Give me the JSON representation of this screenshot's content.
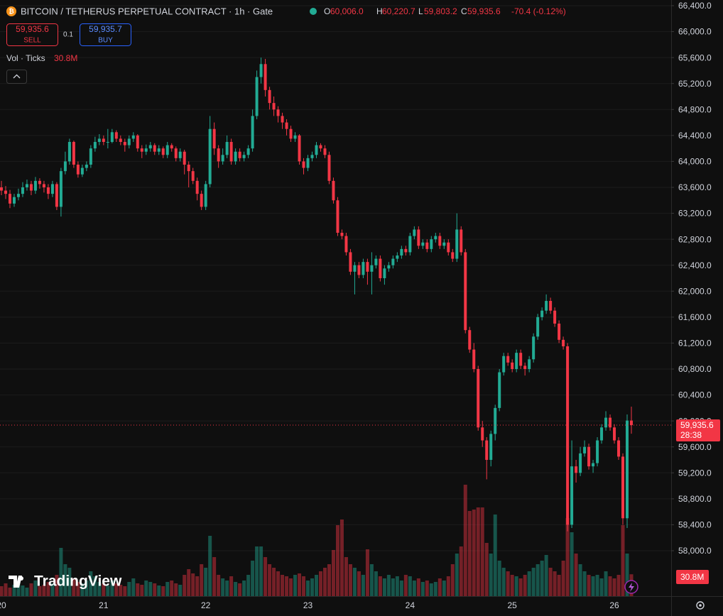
{
  "chart_data": {
    "type": "candlestick",
    "title": "BITCOIN / TETHERUS PERPETUAL CONTRACT · 1h · Gate",
    "legend": {
      "o_label": "O",
      "open": "60,006.0",
      "h_label": "H",
      "high": "60,220.7",
      "l_label": "L",
      "low": "59,803.2",
      "c_label": "C",
      "close": "59,935.6",
      "change": "-70.4 (-0.12%)"
    },
    "trade": {
      "sell_price": "59,935.6",
      "sell": "SELL",
      "size": "0.1",
      "buy_price": "59,935.7",
      "buy": "BUY"
    },
    "price_tag": {
      "price": "59,935.6",
      "countdown": "28:38"
    },
    "watermark": "TradingView",
    "up_color": "#22ab94",
    "down_color": "#f23645",
    "categories": [
      "20",
      null,
      null,
      null,
      null,
      null,
      null,
      null,
      null,
      null,
      null,
      null,
      null,
      null,
      null,
      null,
      null,
      null,
      null,
      null,
      null,
      null,
      null,
      null,
      "21",
      null,
      null,
      null,
      null,
      null,
      null,
      null,
      null,
      null,
      null,
      null,
      null,
      null,
      null,
      null,
      null,
      null,
      null,
      null,
      null,
      null,
      null,
      null,
      "22",
      null,
      null,
      null,
      null,
      null,
      null,
      null,
      null,
      null,
      null,
      null,
      null,
      null,
      null,
      null,
      null,
      null,
      null,
      null,
      null,
      null,
      null,
      null,
      "23",
      null,
      null,
      null,
      null,
      null,
      null,
      null,
      null,
      null,
      null,
      null,
      null,
      null,
      null,
      null,
      null,
      null,
      null,
      null,
      null,
      null,
      null,
      null,
      "24",
      null,
      null,
      null,
      null,
      null,
      null,
      null,
      null,
      null,
      null,
      null,
      null,
      null,
      null,
      null,
      null,
      null,
      null,
      null,
      null,
      null,
      null,
      null,
      "25",
      null,
      null,
      null,
      null,
      null,
      null,
      null,
      null,
      null,
      null,
      null,
      null,
      null,
      null,
      null,
      null,
      null,
      null,
      null,
      null,
      null,
      null,
      null,
      "26",
      null,
      null,
      null,
      null
    ],
    "ohlc": [
      [
        63600,
        63700,
        63480,
        63550
      ],
      [
        63550,
        63620,
        63420,
        63500
      ],
      [
        63500,
        63560,
        63280,
        63350
      ],
      [
        63350,
        63500,
        63300,
        63450
      ],
      [
        63450,
        63580,
        63400,
        63500
      ],
      [
        63500,
        63680,
        63450,
        63600
      ],
      [
        63600,
        63720,
        63550,
        63650
      ],
      [
        63650,
        63700,
        63480,
        63550
      ],
      [
        63550,
        63760,
        63500,
        63700
      ],
      [
        63700,
        63740,
        63580,
        63650
      ],
      [
        63650,
        63700,
        63520,
        63600
      ],
      [
        63600,
        63650,
        63420,
        63500
      ],
      [
        63500,
        63700,
        63450,
        63650
      ],
      [
        63650,
        63680,
        63250,
        63300
      ],
      [
        63300,
        63900,
        63150,
        63850
      ],
      [
        63850,
        64150,
        63800,
        64000
      ],
      [
        64000,
        64350,
        63950,
        64300
      ],
      [
        64300,
        64320,
        63900,
        63950
      ],
      [
        63950,
        64000,
        63750,
        63800
      ],
      [
        63800,
        63950,
        63760,
        63900
      ],
      [
        63900,
        64000,
        63850,
        63950
      ],
      [
        63950,
        64250,
        63900,
        64200
      ],
      [
        64200,
        64380,
        64150,
        64300
      ],
      [
        64300,
        64420,
        64250,
        64350
      ],
      [
        64350,
        64400,
        64250,
        64300
      ],
      [
        64300,
        64500,
        64200,
        64300
      ],
      [
        64300,
        64500,
        64280,
        64450
      ],
      [
        64450,
        64480,
        64300,
        64350
      ],
      [
        64350,
        64400,
        64250,
        64300
      ],
      [
        64300,
        64350,
        64150,
        64250
      ],
      [
        64250,
        64400,
        64200,
        64350
      ],
      [
        64350,
        64450,
        64300,
        64400
      ],
      [
        64400,
        64420,
        64150,
        64200
      ],
      [
        64200,
        64250,
        64050,
        64150
      ],
      [
        64150,
        64260,
        64100,
        64200
      ],
      [
        64200,
        64300,
        64150,
        64250
      ],
      [
        64250,
        64280,
        64100,
        64150
      ],
      [
        64150,
        64250,
        64100,
        64200
      ],
      [
        64200,
        64230,
        64050,
        64100
      ],
      [
        64100,
        64300,
        64050,
        64250
      ],
      [
        64250,
        64280,
        64150,
        64200
      ],
      [
        64200,
        64230,
        64000,
        64050
      ],
      [
        64050,
        64200,
        64000,
        64150
      ],
      [
        64150,
        64180,
        63800,
        63950
      ],
      [
        63950,
        64000,
        63600,
        63850
      ],
      [
        63850,
        63900,
        63650,
        63700
      ],
      [
        63700,
        63750,
        63400,
        63500
      ],
      [
        63500,
        63550,
        63250,
        63300
      ],
      [
        63300,
        63700,
        63250,
        63650
      ],
      [
        63650,
        64700,
        63600,
        64500
      ],
      [
        64500,
        64600,
        64100,
        64200
      ],
      [
        64200,
        64250,
        63900,
        64000
      ],
      [
        64000,
        64200,
        63950,
        64100
      ],
      [
        64100,
        64400,
        64050,
        64300
      ],
      [
        64300,
        64350,
        63950,
        64000
      ],
      [
        64000,
        64200,
        63950,
        64150
      ],
      [
        64150,
        64200,
        64000,
        64050
      ],
      [
        64050,
        64150,
        64000,
        64100
      ],
      [
        64100,
        64250,
        64050,
        64200
      ],
      [
        64200,
        64800,
        64150,
        64700
      ],
      [
        64700,
        65400,
        64650,
        65300
      ],
      [
        65300,
        65600,
        65200,
        65500
      ],
      [
        65500,
        65580,
        65000,
        65100
      ],
      [
        65100,
        65150,
        64800,
        64900
      ],
      [
        64900,
        65000,
        64700,
        64800
      ],
      [
        64800,
        64850,
        64600,
        64700
      ],
      [
        64700,
        64750,
        64500,
        64600
      ],
      [
        64600,
        64650,
        64400,
        64500
      ],
      [
        64500,
        64550,
        64300,
        64350
      ],
      [
        64350,
        64450,
        64300,
        64400
      ],
      [
        64400,
        64420,
        63950,
        64000
      ],
      [
        64000,
        64050,
        63800,
        63900
      ],
      [
        63900,
        64100,
        63850,
        64050
      ],
      [
        64050,
        64150,
        64000,
        64100
      ],
      [
        64100,
        64300,
        64050,
        64250
      ],
      [
        64250,
        64280,
        64150,
        64200
      ],
      [
        64200,
        64250,
        64050,
        64100
      ],
      [
        64100,
        64150,
        63650,
        63700
      ],
      [
        63700,
        63750,
        63350,
        63400
      ],
      [
        63400,
        63450,
        62850,
        62900
      ],
      [
        62900,
        62950,
        62800,
        62850
      ],
      [
        62850,
        62900,
        62550,
        62600
      ],
      [
        62600,
        62650,
        62250,
        62300
      ],
      [
        62300,
        62450,
        61950,
        62400
      ],
      [
        62400,
        62450,
        62200,
        62250
      ],
      [
        62250,
        62500,
        62200,
        62450
      ],
      [
        62450,
        62500,
        62100,
        62300
      ],
      [
        62300,
        62600,
        61950,
        62400
      ],
      [
        62400,
        62550,
        62350,
        62500
      ],
      [
        62500,
        62550,
        62150,
        62200
      ],
      [
        62200,
        62400,
        62100,
        62350
      ],
      [
        62350,
        62450,
        62300,
        62400
      ],
      [
        62400,
        62550,
        62350,
        62500
      ],
      [
        62500,
        62600,
        62450,
        62550
      ],
      [
        62550,
        62700,
        62500,
        62650
      ],
      [
        62650,
        62700,
        62550,
        62600
      ],
      [
        62600,
        62900,
        62550,
        62850
      ],
      [
        62850,
        63000,
        62800,
        62950
      ],
      [
        62950,
        63000,
        62650,
        62700
      ],
      [
        62700,
        62800,
        62650,
        62750
      ],
      [
        62750,
        62800,
        62600,
        62650
      ],
      [
        62650,
        62850,
        62600,
        62800
      ],
      [
        62800,
        62900,
        62750,
        62850
      ],
      [
        62850,
        62900,
        62650,
        62700
      ],
      [
        62700,
        62800,
        62650,
        62750
      ],
      [
        62750,
        62800,
        62550,
        62600
      ],
      [
        62600,
        62650,
        62450,
        62500
      ],
      [
        62500,
        63200,
        62450,
        62950
      ],
      [
        62950,
        63000,
        62550,
        62600
      ],
      [
        62600,
        62650,
        61350,
        61400
      ],
      [
        61400,
        61450,
        61050,
        61100
      ],
      [
        61100,
        61200,
        60750,
        60800
      ],
      [
        60800,
        60850,
        59850,
        59900
      ],
      [
        59900,
        60000,
        59600,
        59700
      ],
      [
        59700,
        59750,
        59100,
        59400
      ],
      [
        59400,
        59850,
        59300,
        59800
      ],
      [
        59800,
        60250,
        59700,
        60200
      ],
      [
        60200,
        60800,
        60150,
        60750
      ],
      [
        60750,
        61050,
        60700,
        61000
      ],
      [
        61000,
        61050,
        60850,
        60900
      ],
      [
        60900,
        60950,
        60750,
        60800
      ],
      [
        60800,
        61100,
        60750,
        61050
      ],
      [
        61050,
        61100,
        60800,
        60850
      ],
      [
        60850,
        60900,
        60700,
        60800
      ],
      [
        60800,
        61000,
        60750,
        60950
      ],
      [
        60950,
        61350,
        60900,
        61300
      ],
      [
        61300,
        61650,
        61250,
        61600
      ],
      [
        61600,
        61750,
        61550,
        61700
      ],
      [
        61700,
        61950,
        61650,
        61850
      ],
      [
        61850,
        61900,
        61650,
        61700
      ],
      [
        61700,
        61750,
        61450,
        61500
      ],
      [
        61500,
        61550,
        61200,
        61250
      ],
      [
        61250,
        61300,
        61100,
        61150
      ],
      [
        61150,
        61200,
        58300,
        58400
      ],
      [
        58400,
        59700,
        58350,
        59300
      ],
      [
        59300,
        59400,
        59050,
        59200
      ],
      [
        59200,
        59600,
        59150,
        59500
      ],
      [
        59500,
        59700,
        59450,
        59600
      ],
      [
        59600,
        59650,
        59250,
        59300
      ],
      [
        59300,
        59400,
        59200,
        59350
      ],
      [
        59350,
        59750,
        59300,
        59700
      ],
      [
        59700,
        59950,
        59650,
        59900
      ],
      [
        59900,
        60150,
        59850,
        60050
      ],
      [
        60050,
        60100,
        59850,
        59900
      ],
      [
        59900,
        59950,
        59650,
        59700
      ],
      [
        59700,
        59750,
        59400,
        59450
      ],
      [
        59450,
        59500,
        58400,
        58500
      ],
      [
        58500,
        60100,
        58350,
        60006
      ],
      [
        60006,
        60220.7,
        59803.2,
        59935.6
      ]
    ],
    "volume": {
      "name": "Vol · Ticks",
      "value_label": "30.8M",
      "values": [
        14,
        18,
        12,
        16,
        20,
        15,
        12,
        18,
        22,
        14,
        16,
        20,
        18,
        30,
        68,
        45,
        40,
        25,
        20,
        18,
        22,
        35,
        28,
        20,
        18,
        15,
        22,
        18,
        16,
        14,
        20,
        25,
        18,
        16,
        22,
        20,
        18,
        15,
        14,
        20,
        22,
        18,
        16,
        30,
        38,
        32,
        28,
        45,
        40,
        85,
        55,
        30,
        25,
        22,
        28,
        20,
        18,
        22,
        30,
        50,
        70,
        70,
        55,
        45,
        40,
        35,
        30,
        28,
        25,
        30,
        32,
        28,
        22,
        25,
        30,
        35,
        40,
        45,
        65,
        100,
        108,
        55,
        45,
        40,
        35,
        30,
        66,
        45,
        35,
        28,
        25,
        30,
        25,
        28,
        22,
        30,
        28,
        22,
        25,
        20,
        22,
        18,
        20,
        25,
        22,
        28,
        45,
        60,
        70,
        157,
        120,
        122,
        125,
        125,
        75,
        60,
        115,
        50,
        40,
        35,
        30,
        28,
        25,
        30,
        35,
        40,
        45,
        50,
        58,
        40,
        35,
        30,
        50,
        110,
        90,
        60,
        45,
        35,
        30,
        28,
        30,
        25,
        35,
        28,
        25,
        30,
        100,
        60,
        30.8
      ]
    },
    "ylim": [
      57300,
      66487.5
    ],
    "yticks": [
      {
        "value": 58000,
        "label": "58,000.0"
      },
      {
        "value": 58400,
        "label": "58,400.0"
      },
      {
        "value": 58800,
        "label": "58,800.0"
      },
      {
        "value": 59200,
        "label": "59,200.0"
      },
      {
        "value": 59600,
        "label": "59,600.0"
      },
      {
        "value": 60000,
        "label": "60,000.0"
      },
      {
        "value": 60400,
        "label": "60,400.0"
      },
      {
        "value": 60800,
        "label": "60,800.0"
      },
      {
        "value": 61200,
        "label": "61,200.0"
      },
      {
        "value": 61600,
        "label": "61,600.0"
      },
      {
        "value": 62000,
        "label": "62,000.0"
      },
      {
        "value": 62400,
        "label": "62,400.0"
      },
      {
        "value": 62800,
        "label": "62,800.0"
      },
      {
        "value": 63200,
        "label": "63,200.0"
      },
      {
        "value": 63600,
        "label": "63,600.0"
      },
      {
        "value": 64000,
        "label": "64,000.0"
      },
      {
        "value": 64400,
        "label": "64,400.0"
      },
      {
        "value": 64800,
        "label": "64,800.0"
      },
      {
        "value": 65200,
        "label": "65,200.0"
      },
      {
        "value": 65600,
        "label": "65,600.0"
      },
      {
        "value": 66000,
        "label": "66,000.0"
      },
      {
        "value": 66400,
        "label": "66,400.0"
      }
    ],
    "grid": true
  }
}
